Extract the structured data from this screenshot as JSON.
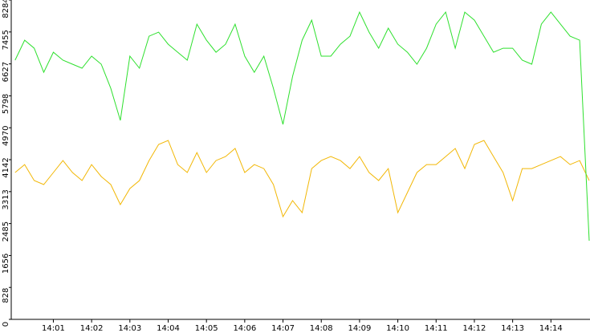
{
  "chart_data": {
    "type": "line",
    "x": [
      0,
      0.25,
      0.5,
      0.75,
      1,
      1.25,
      1.5,
      1.75,
      2,
      2.25,
      2.5,
      2.75,
      3,
      3.25,
      3.5,
      3.75,
      4,
      4.25,
      4.5,
      4.75,
      5,
      5.25,
      5.5,
      5.75,
      6,
      6.25,
      6.5,
      6.75,
      7,
      7.25,
      7.5,
      7.75,
      8,
      8.25,
      8.5,
      8.75,
      9,
      9.25,
      9.5,
      9.75,
      10,
      10.25,
      10.5,
      10.75,
      11,
      11.25,
      11.5,
      11.75,
      12,
      12.25,
      12.5,
      12.75,
      13,
      13.25,
      13.5,
      13.75,
      14,
      14.25,
      14.5,
      14.75,
      15
    ],
    "series": [
      {
        "color": "#2ee02e",
        "values": [
          6722,
          7242,
          7034,
          6409,
          6930,
          6722,
          6618,
          6514,
          6826,
          6618,
          5993,
          5161,
          6826,
          6514,
          7346,
          7450,
          7138,
          6930,
          6722,
          7658,
          7242,
          6930,
          7138,
          7658,
          6826,
          6409,
          6826,
          5993,
          5057,
          6305,
          7242,
          7762,
          6826,
          6826,
          7138,
          7346,
          7970,
          7450,
          7034,
          7554,
          7138,
          6930,
          6618,
          7034,
          7658,
          7970,
          7034,
          7970,
          7762,
          7346,
          6930,
          7034,
          7034,
          6722,
          6618,
          7658,
          7970,
          7658,
          7346,
          7242,
          2039
        ]
      },
      {
        "color": "#f2b705",
        "values": [
          3808,
          4016,
          3600,
          3496,
          3808,
          4120,
          3808,
          3600,
          4016,
          3704,
          3496,
          2976,
          3392,
          3600,
          4120,
          4537,
          4641,
          4016,
          3808,
          4328,
          3808,
          4120,
          4224,
          4433,
          3808,
          4016,
          3912,
          3496,
          2664,
          3080,
          2768,
          3912,
          4120,
          4224,
          4120,
          3912,
          4224,
          3808,
          3600,
          3912,
          2768,
          3288,
          3808,
          4016,
          4016,
          4224,
          4433,
          3912,
          4537,
          4641,
          4224,
          3808,
          3080,
          3912,
          3912,
          4016,
          4120,
          4224,
          4016,
          4120,
          3600
        ]
      }
    ],
    "xlim": [
      -0.1,
      15
    ],
    "xticks": [
      {
        "value": 1,
        "label": "14:01"
      },
      {
        "value": 2,
        "label": "14:02"
      },
      {
        "value": 3,
        "label": "14:03"
      },
      {
        "value": 4,
        "label": "14:04"
      },
      {
        "value": 5,
        "label": "14:05"
      },
      {
        "value": 6,
        "label": "14:06"
      },
      {
        "value": 7,
        "label": "14:07"
      },
      {
        "value": 8,
        "label": "14:08"
      },
      {
        "value": 9,
        "label": "14:09"
      },
      {
        "value": 10,
        "label": "14:10"
      },
      {
        "value": 11,
        "label": "14:11"
      },
      {
        "value": 12,
        "label": "14:12"
      },
      {
        "value": 13,
        "label": "14:13"
      },
      {
        "value": 14,
        "label": "14:14"
      }
    ],
    "ylim": [
      0,
      8284
    ],
    "yticks": [
      0,
      828,
      1656,
      2485,
      3313,
      4142,
      4970,
      5798,
      6627,
      7455,
      8284
    ]
  }
}
